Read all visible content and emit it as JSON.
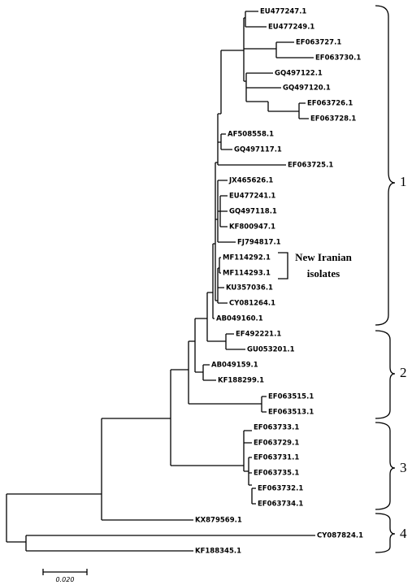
{
  "leaves": [
    "EU477247.1",
    "EU477249.1",
    "EF063727.1",
    "EF063730.1",
    "GQ497122.1",
    "GQ497120.1",
    "EF063726.1",
    "EF063728.1",
    "AF508558.1",
    "GQ497117.1",
    "EF063725.1",
    "JX465626.1",
    "EU477241.1",
    "GQ497118.1",
    "KF800947.1",
    "FJ794817.1",
    "MF114292.1",
    "MF114293.1",
    "KU357036.1",
    "CY081264.1",
    "AB049160.1",
    "EF492221.1",
    "GU053201.1",
    "AB049159.1",
    "KF188299.1",
    "EF063515.1",
    "EF063513.1",
    "EF063733.1",
    "EF063729.1",
    "EF063731.1",
    "EF063735.1",
    "EF063732.1",
    "EF063734.1",
    "KX879569.1",
    "CY087824.1",
    "KF188345.1"
  ],
  "annotation": {
    "lines": [
      "New Iranian",
      "isolates"
    ]
  },
  "clades": [
    "1",
    "2",
    "3",
    "4"
  ],
  "scale_bar": "0.020"
}
